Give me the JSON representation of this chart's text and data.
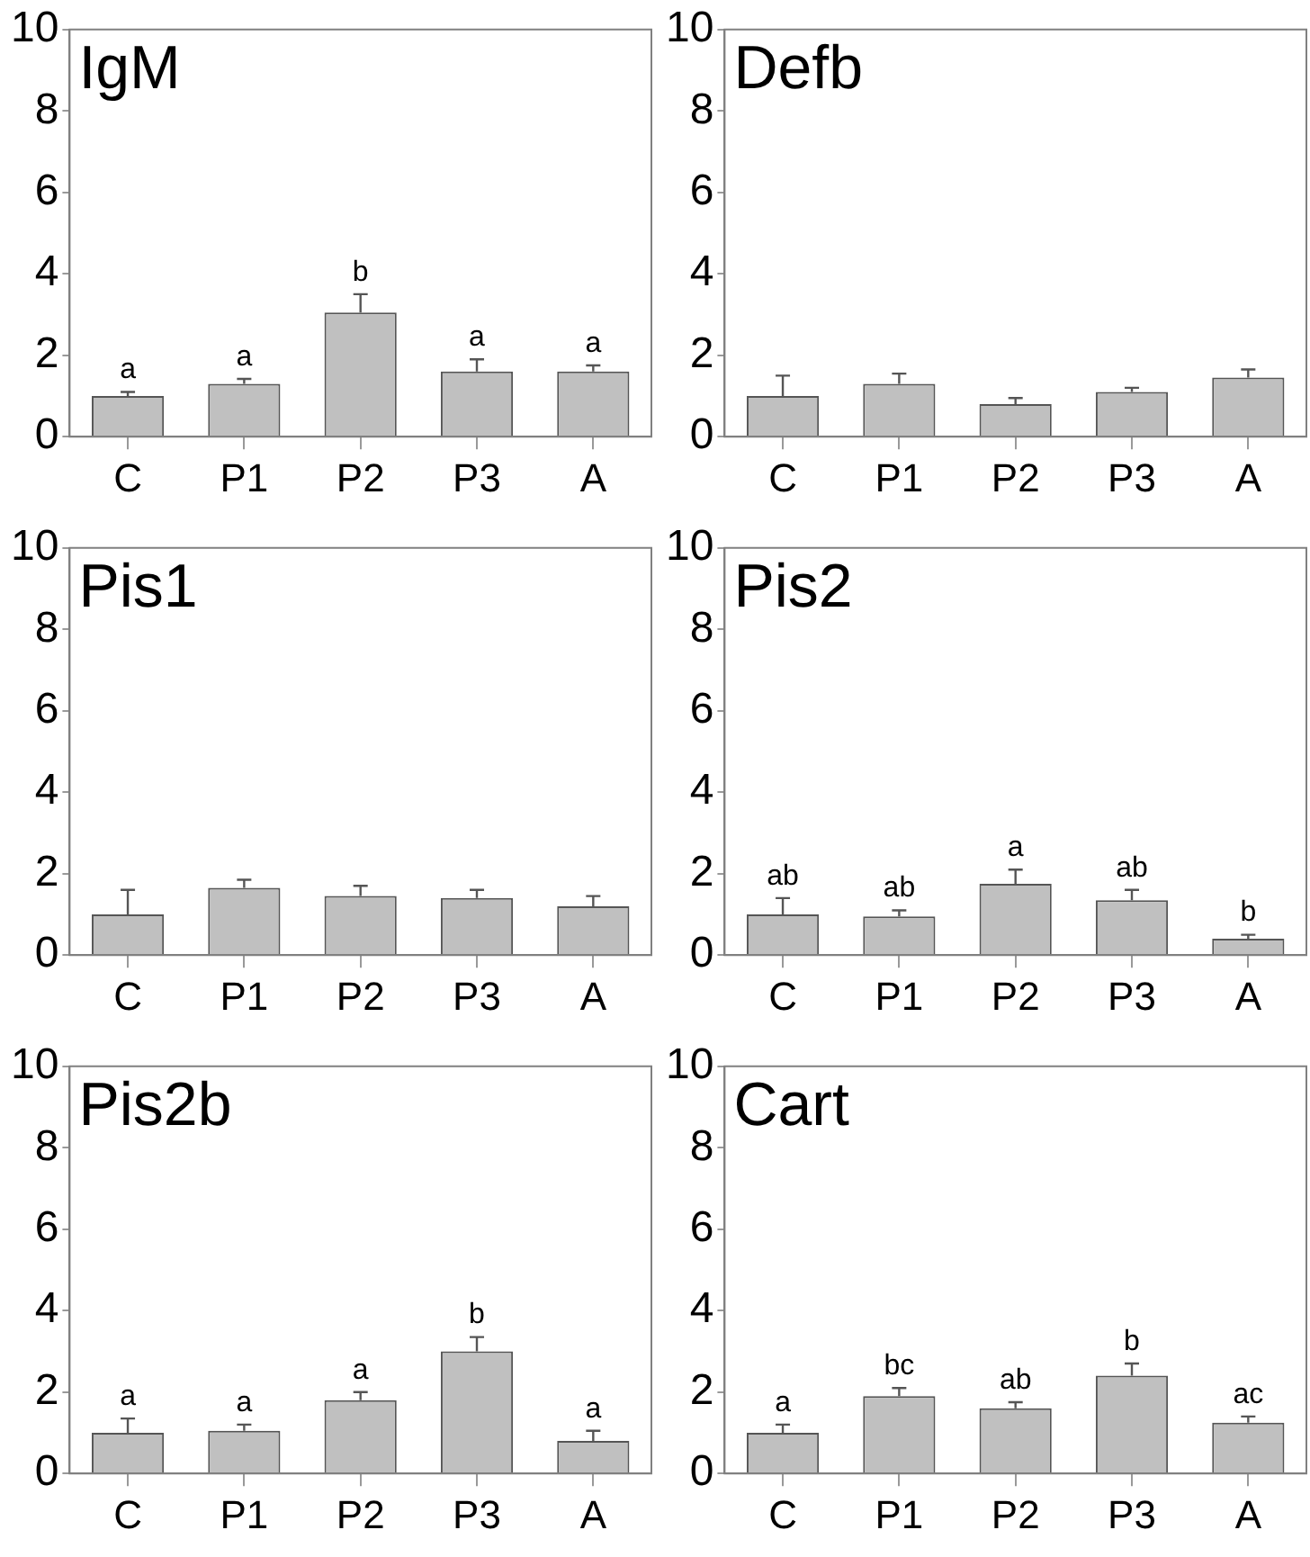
{
  "chart_data": [
    {
      "type": "bar",
      "title": "IgM",
      "categories": [
        "C",
        "P1",
        "P2",
        "P3",
        "A"
      ],
      "values": [
        1.0,
        1.3,
        3.05,
        1.6,
        1.6
      ],
      "errors": [
        [
          1.0,
          1.1
        ],
        [
          1.3,
          1.42
        ],
        [
          3.05,
          3.5
        ],
        [
          1.6,
          1.9
        ],
        [
          1.6,
          1.75
        ]
      ],
      "color": "#c0c0c0",
      "ylim": [
        0,
        10
      ],
      "yticks": [
        0,
        2,
        4,
        6,
        8,
        10
      ],
      "annotations": [
        {
          "text": "a",
          "x": "C",
          "y": 1.1
        },
        {
          "text": "a",
          "x": "P1",
          "y": 1.42
        },
        {
          "text": "b",
          "x": "P2",
          "y": 3.5
        },
        {
          "text": "a",
          "x": "P3",
          "y": 1.9
        },
        {
          "text": "a",
          "x": "A",
          "y": 1.75
        }
      ]
    },
    {
      "type": "bar",
      "title": "Defb",
      "categories": [
        "C",
        "P1",
        "P2",
        "P3",
        "A"
      ],
      "values": [
        1.0,
        1.3,
        0.8,
        1.1,
        1.45
      ],
      "errors": [
        [
          1.0,
          1.5
        ],
        [
          1.3,
          1.55
        ],
        [
          0.8,
          0.95
        ],
        [
          1.1,
          1.2
        ],
        [
          1.45,
          1.65
        ]
      ],
      "color": "#c0c0c0",
      "ylim": [
        0,
        10
      ],
      "yticks": [
        0,
        2,
        4,
        6,
        8,
        10
      ]
    },
    {
      "type": "bar",
      "title": "Pis1",
      "categories": [
        "C",
        "P1",
        "P2",
        "P3",
        "A"
      ],
      "values": [
        1.0,
        1.65,
        1.45,
        1.4,
        1.2
      ],
      "errors": [
        [
          1.0,
          1.6
        ],
        [
          1.65,
          1.85
        ],
        [
          1.45,
          1.7
        ],
        [
          1.4,
          1.6
        ],
        [
          1.2,
          1.45
        ]
      ],
      "color": "#c0c0c0",
      "ylim": [
        0,
        10
      ],
      "yticks": [
        0,
        2,
        4,
        6,
        8,
        10
      ]
    },
    {
      "type": "bar",
      "title": "Pis2",
      "categories": [
        "C",
        "P1",
        "P2",
        "P3",
        "A"
      ],
      "values": [
        1.0,
        0.95,
        1.75,
        1.35,
        0.4
      ],
      "errors": [
        [
          1.0,
          1.4
        ],
        [
          0.95,
          1.1
        ],
        [
          1.75,
          2.1
        ],
        [
          1.35,
          1.6
        ],
        [
          0.4,
          0.5
        ]
      ],
      "color": "#c0c0c0",
      "ylim": [
        0,
        10
      ],
      "yticks": [
        0,
        2,
        4,
        6,
        8,
        10
      ],
      "annotations": [
        {
          "text": "ab",
          "x": "C",
          "y": 1.4
        },
        {
          "text": "ab",
          "x": "P1",
          "y": 1.1
        },
        {
          "text": "a",
          "x": "P2",
          "y": 2.1
        },
        {
          "text": "ab",
          "x": "P3",
          "y": 1.6
        },
        {
          "text": "b",
          "x": "A",
          "y": 0.5
        }
      ]
    },
    {
      "type": "bar",
      "title": "Pis2b",
      "categories": [
        "C",
        "P1",
        "P2",
        "P3",
        "A"
      ],
      "values": [
        1.0,
        1.05,
        1.8,
        3.0,
        0.8
      ],
      "errors": [
        [
          1.0,
          1.35
        ],
        [
          1.05,
          1.2
        ],
        [
          1.8,
          2.0
        ],
        [
          3.0,
          3.35
        ],
        [
          0.8,
          1.05
        ]
      ],
      "color": "#c0c0c0",
      "ylim": [
        0,
        10
      ],
      "yticks": [
        0,
        2,
        4,
        6,
        8,
        10
      ],
      "annotations": [
        {
          "text": "a",
          "x": "C",
          "y": 1.35
        },
        {
          "text": "a",
          "x": "P1",
          "y": 1.2
        },
        {
          "text": "a",
          "x": "P2",
          "y": 2.0
        },
        {
          "text": "b",
          "x": "P3",
          "y": 3.35
        },
        {
          "text": "a",
          "x": "A",
          "y": 1.05
        }
      ]
    },
    {
      "type": "bar",
      "title": "Cart",
      "categories": [
        "C",
        "P1",
        "P2",
        "P3",
        "A"
      ],
      "values": [
        1.0,
        1.9,
        1.6,
        2.4,
        1.25
      ],
      "errors": [
        [
          1.0,
          1.2
        ],
        [
          1.9,
          2.1
        ],
        [
          1.6,
          1.75
        ],
        [
          2.4,
          2.7
        ],
        [
          1.25,
          1.4
        ]
      ],
      "color": "#c0c0c0",
      "ylim": [
        0,
        10
      ],
      "yticks": [
        0,
        2,
        4,
        6,
        8,
        10
      ],
      "annotations": [
        {
          "text": "a",
          "x": "C",
          "y": 1.2
        },
        {
          "text": "bc",
          "x": "P1",
          "y": 2.1
        },
        {
          "text": "ab",
          "x": "P2",
          "y": 1.75
        },
        {
          "text": "b",
          "x": "P3",
          "y": 2.7
        },
        {
          "text": "ac",
          "x": "A",
          "y": 1.4
        }
      ]
    }
  ]
}
